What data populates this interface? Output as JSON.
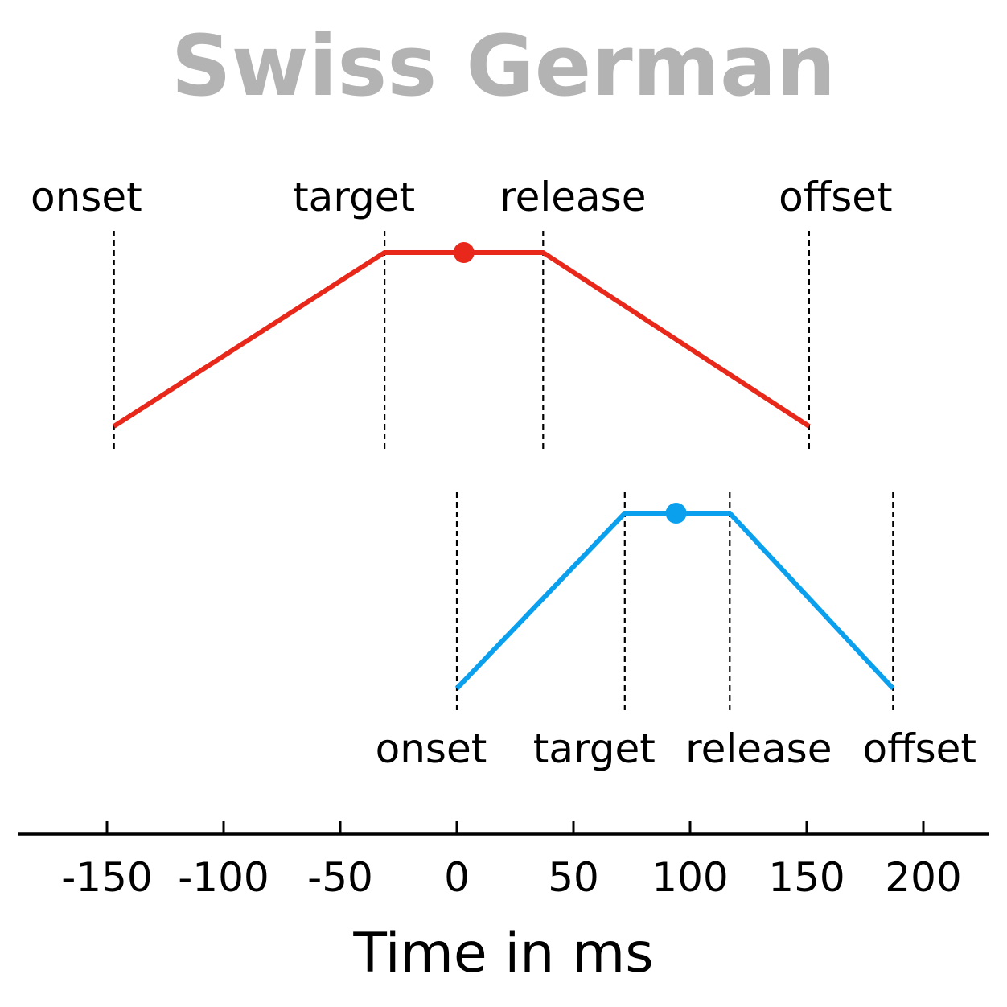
{
  "title": "Swiss German",
  "colors": {
    "title": "#b3b3b3",
    "gesture_1": "#e8281a",
    "gesture_2": "#0aa0ee",
    "axis": "#000000"
  },
  "chart_data": {
    "type": "line",
    "xlabel": "Time in ms",
    "xlim": [
      -188,
      228
    ],
    "x_ticks": [
      -150,
      -100,
      -50,
      0,
      50,
      100,
      150,
      200
    ],
    "x_tick_labels": [
      "-150",
      "-100",
      "-50",
      "0",
      "50",
      "100",
      "150",
      "200"
    ],
    "landmark_lines": "dashed",
    "series": [
      {
        "landmarks": [
          {
            "label": "onset",
            "x": -147
          },
          {
            "label": "target",
            "x": -31
          },
          {
            "label": "release",
            "x": 37
          },
          {
            "label": "offset",
            "x": 151
          }
        ],
        "marker_x": 3
      },
      {
        "landmarks": [
          {
            "label": "onset",
            "x": 0
          },
          {
            "label": "target",
            "x": 72
          },
          {
            "label": "release",
            "x": 117
          },
          {
            "label": "offset",
            "x": 187
          }
        ],
        "marker_x": 94
      }
    ]
  }
}
